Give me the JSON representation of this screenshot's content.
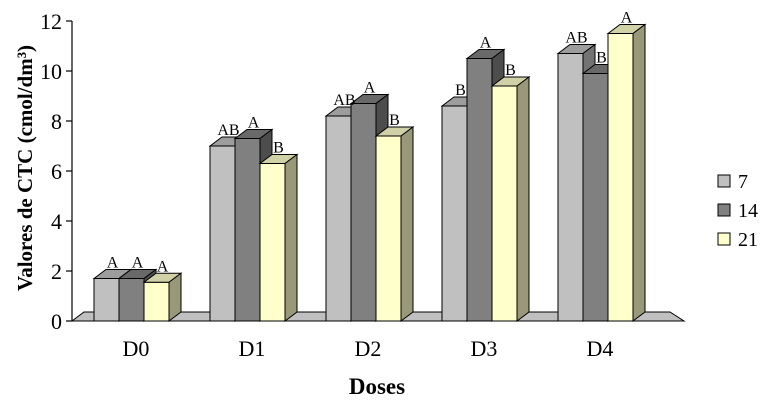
{
  "chart_data": {
    "type": "bar",
    "style": "3d-clustered-column",
    "title": "",
    "xlabel": "Doses",
    "ylabel": "Valores de CTC (cmol/dm³)",
    "ylim": [
      0,
      12
    ],
    "yticks": [
      0,
      2,
      4,
      6,
      8,
      10,
      12
    ],
    "grid": false,
    "legend_position": "right",
    "categories": [
      "D0",
      "D1",
      "D2",
      "D3",
      "D4"
    ],
    "series": [
      {
        "name": "7",
        "color": "#c0c0c0",
        "values": [
          1.7,
          7.0,
          8.2,
          8.6,
          10.7
        ],
        "labels": [
          "A",
          "AB",
          "AB",
          "B",
          "AB"
        ]
      },
      {
        "name": "14",
        "color": "#808080",
        "values": [
          1.7,
          7.3,
          8.7,
          10.5,
          9.9
        ],
        "labels": [
          "A",
          "A",
          "A",
          "A",
          "B"
        ]
      },
      {
        "name": "21",
        "color": "#ffffcc",
        "values": [
          1.55,
          6.3,
          7.4,
          9.4,
          11.5
        ],
        "labels": [
          "A",
          "B",
          "B",
          "B",
          "A"
        ]
      }
    ]
  }
}
